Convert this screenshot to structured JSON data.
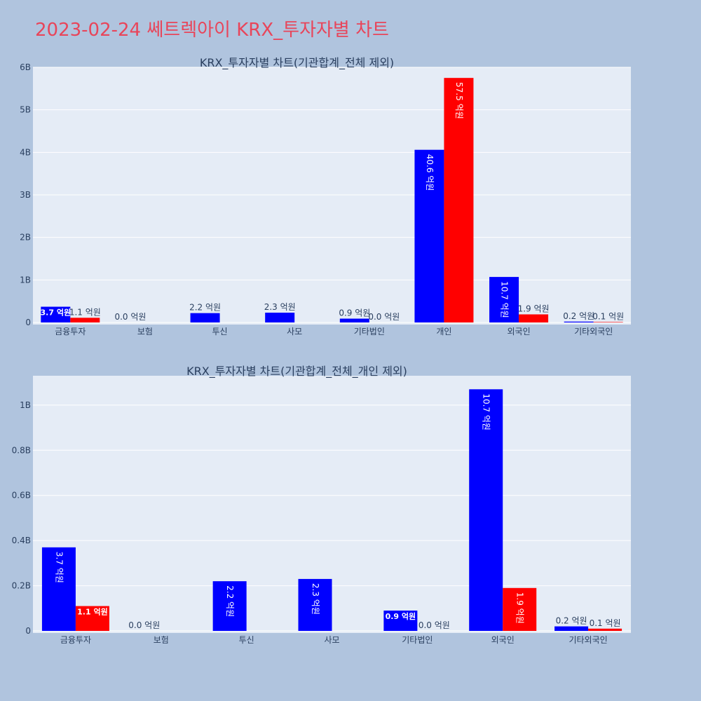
{
  "page": {
    "title": "2023-02-24 쎄트렉아이 KRX_투자자별 차트"
  },
  "colors": {
    "background": "#b0c4de",
    "plot_bg": "#e5ecf6",
    "buy": "#0000ff",
    "sell": "#ff0000",
    "title": "#e8455a",
    "text": "#2a3f5f"
  },
  "chart_data": [
    {
      "type": "bar",
      "title": "KRX_투자자별 차트(기관합계_전체 제외)",
      "categories": [
        "금융투자",
        "보험",
        "투신",
        "사모",
        "기타법인",
        "개인",
        "외국인",
        "기타외국인"
      ],
      "series": [
        {
          "color": "#0000ff",
          "values": [
            370000000,
            0,
            220000000,
            230000000,
            90000000,
            4060000000,
            1070000000,
            20000000
          ],
          "labels": [
            "3.7 억원",
            "0.0 억원",
            "2.2 억원",
            "2.3 억원",
            "0.9 억원",
            "40.6 억원",
            "10.7 억원",
            "0.2 억원"
          ]
        },
        {
          "color": "#ff0000",
          "values": [
            110000000,
            0,
            0,
            0,
            0,
            5750000000,
            190000000,
            10000000
          ],
          "labels": [
            "1.1 억원",
            "",
            "",
            "",
            "0.0 억원",
            "57.5 억원",
            "1.9 억원",
            "0.1 억원"
          ]
        }
      ],
      "ylim": [
        0,
        6000000000
      ],
      "yticks": [
        0,
        1000000000,
        2000000000,
        3000000000,
        4000000000,
        5000000000,
        6000000000
      ],
      "ytick_labels": [
        "0",
        "1B",
        "2B",
        "3B",
        "4B",
        "5B",
        "6B"
      ],
      "grid": true
    },
    {
      "type": "bar",
      "title": "KRX_투자자별 차트(기관합계_전체_개인 제외)",
      "categories": [
        "금융투자",
        "보험",
        "투신",
        "사모",
        "기타법인",
        "외국인",
        "기타외국인"
      ],
      "series": [
        {
          "color": "#0000ff",
          "values": [
            370000000,
            0,
            220000000,
            230000000,
            90000000,
            1070000000,
            20000000
          ],
          "labels": [
            "3.7 억원",
            "0.0 억원",
            "2.2 억원",
            "2.3 억원",
            "0.9 억원",
            "10.7 억원",
            "0.2 억원"
          ]
        },
        {
          "color": "#ff0000",
          "values": [
            110000000,
            0,
            0,
            0,
            0,
            190000000,
            10000000
          ],
          "labels": [
            "1.1 억원",
            "",
            "",
            "",
            "0.0 억원",
            "1.9 억원",
            "0.1 억원"
          ]
        }
      ],
      "ylim": [
        0,
        1130000000
      ],
      "yticks": [
        0,
        200000000,
        400000000,
        600000000,
        800000000,
        1000000000
      ],
      "ytick_labels": [
        "0",
        "0.2B",
        "0.4B",
        "0.6B",
        "0.8B",
        "1B"
      ],
      "grid": true
    }
  ]
}
